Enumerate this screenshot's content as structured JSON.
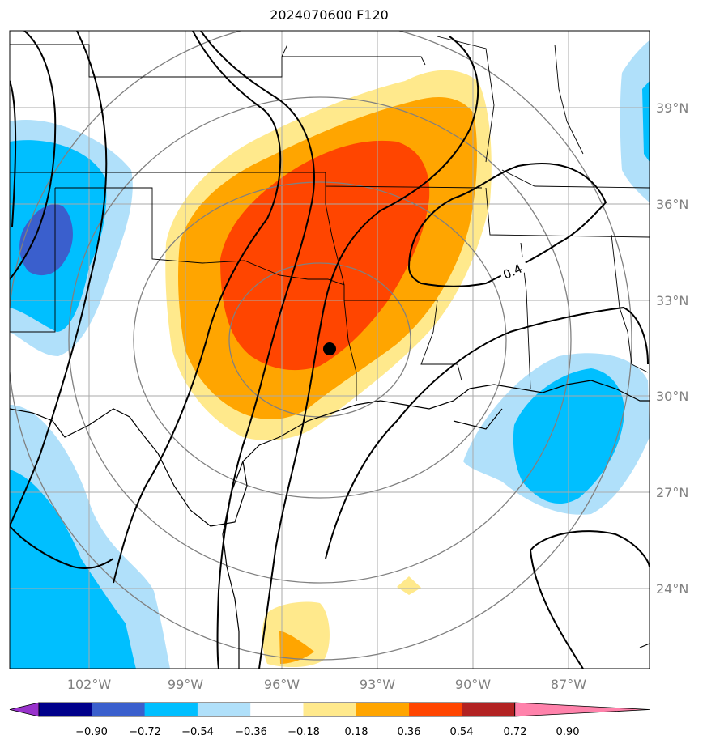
{
  "title": "2024070600 F120",
  "lat_labels": [
    "39°N",
    "36°N",
    "33°N",
    "30°N",
    "27°N",
    "24°N"
  ],
  "lon_labels": [
    "102°W",
    "99°W",
    "96°W",
    "93°W",
    "90°W",
    "87°W"
  ],
  "contour_label": "0.4",
  "colorbar": {
    "tick_labels": [
      "−0.90",
      "−0.72",
      "−0.54",
      "−0.36",
      "−0.18",
      "0.18",
      "0.36",
      "0.54",
      "0.72",
      "0.90"
    ],
    "colors": [
      "#9932cc",
      "#00008b",
      "#3a5fcd",
      "#00bfff",
      "#b0e0fa",
      "#ffffff",
      "#ffe98c",
      "#ffa500",
      "#ff4500",
      "#b22222",
      "#ff82ab"
    ]
  },
  "colors": {
    "ocean_coast": "#000000",
    "grid": "#aaaaaa",
    "range_rings": "#808080",
    "point_marker": "#000000"
  }
}
